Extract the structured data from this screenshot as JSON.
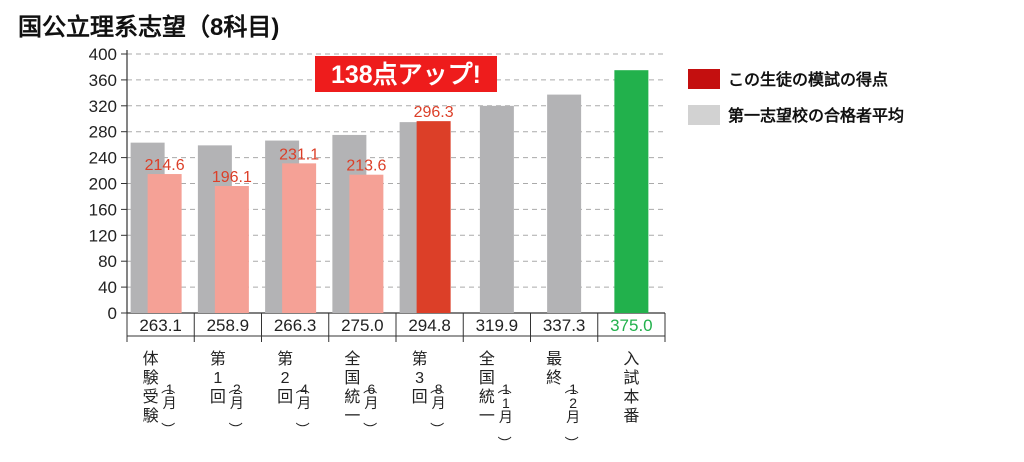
{
  "colors": {
    "gray": "#b3b3b5",
    "red_light": "#f5a196",
    "red_strong": "#dc3f28",
    "green": "#22b14c",
    "label_red": "#dc3f28",
    "legend_red": "#c40f0f",
    "legend_gray": "#d2d2d2",
    "badge_bg": "#ee1c1c",
    "grid": "#aaaaaa"
  },
  "chart_data": {
    "type": "bar",
    "title": "国公立理系志望（8科目)",
    "badge": "138点アップ!",
    "ylim": [
      0,
      400
    ],
    "yticks": [
      0,
      40,
      80,
      120,
      160,
      200,
      240,
      280,
      320,
      360,
      400
    ],
    "grid": true,
    "legend_position": "right",
    "categories": [
      {
        "label": "体験受験",
        "sub": "（1月）"
      },
      {
        "label": "第1回",
        "sub": "（2月）"
      },
      {
        "label": "第2回",
        "sub": "（4月）"
      },
      {
        "label": "全国統一",
        "sub": "（6月）"
      },
      {
        "label": "第3回",
        "sub": "（8月）"
      },
      {
        "label": "全国統一",
        "sub": "（11月）"
      },
      {
        "label": "最終",
        "sub": "（12月）"
      },
      {
        "label": "入試本番",
        "sub": ""
      }
    ],
    "series": [
      {
        "name": "第一志望校の合格者平均",
        "values": [
          263.1,
          258.9,
          266.3,
          275.0,
          294.8,
          319.9,
          337.3,
          375.0
        ]
      },
      {
        "name": "この生徒の模試の得点",
        "values": [
          214.6,
          196.1,
          231.1,
          213.6,
          296.3,
          null,
          null,
          null
        ]
      }
    ],
    "table_values": [
      "263.1",
      "258.9",
      "266.3",
      "275.0",
      "294.8",
      "319.9",
      "337.3",
      "375.0"
    ],
    "student_labels": [
      "214.6",
      "196.1",
      "231.1",
      "213.6",
      "296.3"
    ]
  }
}
